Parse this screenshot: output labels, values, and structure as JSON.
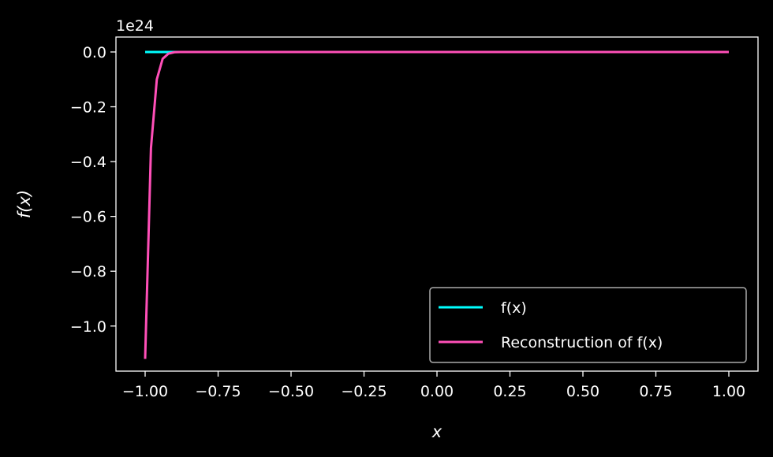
{
  "chart_data": {
    "type": "line",
    "title": "",
    "xlabel": "x",
    "ylabel": "f(x)",
    "y_offset_label": "1e24",
    "xlim": [
      -1.1,
      1.1
    ],
    "ylim": [
      -1.1645,
      0.0545
    ],
    "x_ticks": [
      -1.0,
      -0.75,
      -0.5,
      -0.25,
      0.0,
      0.25,
      0.5,
      0.75,
      1.0
    ],
    "x_tick_labels": [
      "−1.00",
      "−0.75",
      "−0.50",
      "−0.25",
      "0.00",
      "0.25",
      "0.50",
      "0.75",
      "1.00"
    ],
    "y_ticks": [
      0.0,
      -0.2,
      -0.4,
      -0.6,
      -0.8,
      -1.0
    ],
    "y_tick_labels": [
      "0.0",
      "−0.2",
      "−0.4",
      "−0.6",
      "−0.8",
      "−1.0"
    ],
    "grid": false,
    "legend_position": "bottom-right",
    "series": [
      {
        "name": "f(x)",
        "color": "#00ffff",
        "x": [
          -1.0,
          -0.9,
          -0.5,
          0.0,
          0.5,
          1.0
        ],
        "y": [
          0.0,
          0.0,
          0.0,
          0.0,
          0.0,
          0.0
        ]
      },
      {
        "name": "Reconstruction of f(x)",
        "color": "#ff4fb8",
        "x": [
          -1.0,
          -0.98,
          -0.96,
          -0.94,
          -0.92,
          -0.9,
          -0.88,
          -0.85,
          -0.5,
          0.0,
          0.5,
          1.0
        ],
        "y": [
          -1.12,
          -0.35,
          -0.1,
          -0.025,
          -0.006,
          -0.001,
          0.0,
          0.0,
          0.0,
          0.0,
          0.0,
          0.0
        ]
      }
    ]
  }
}
